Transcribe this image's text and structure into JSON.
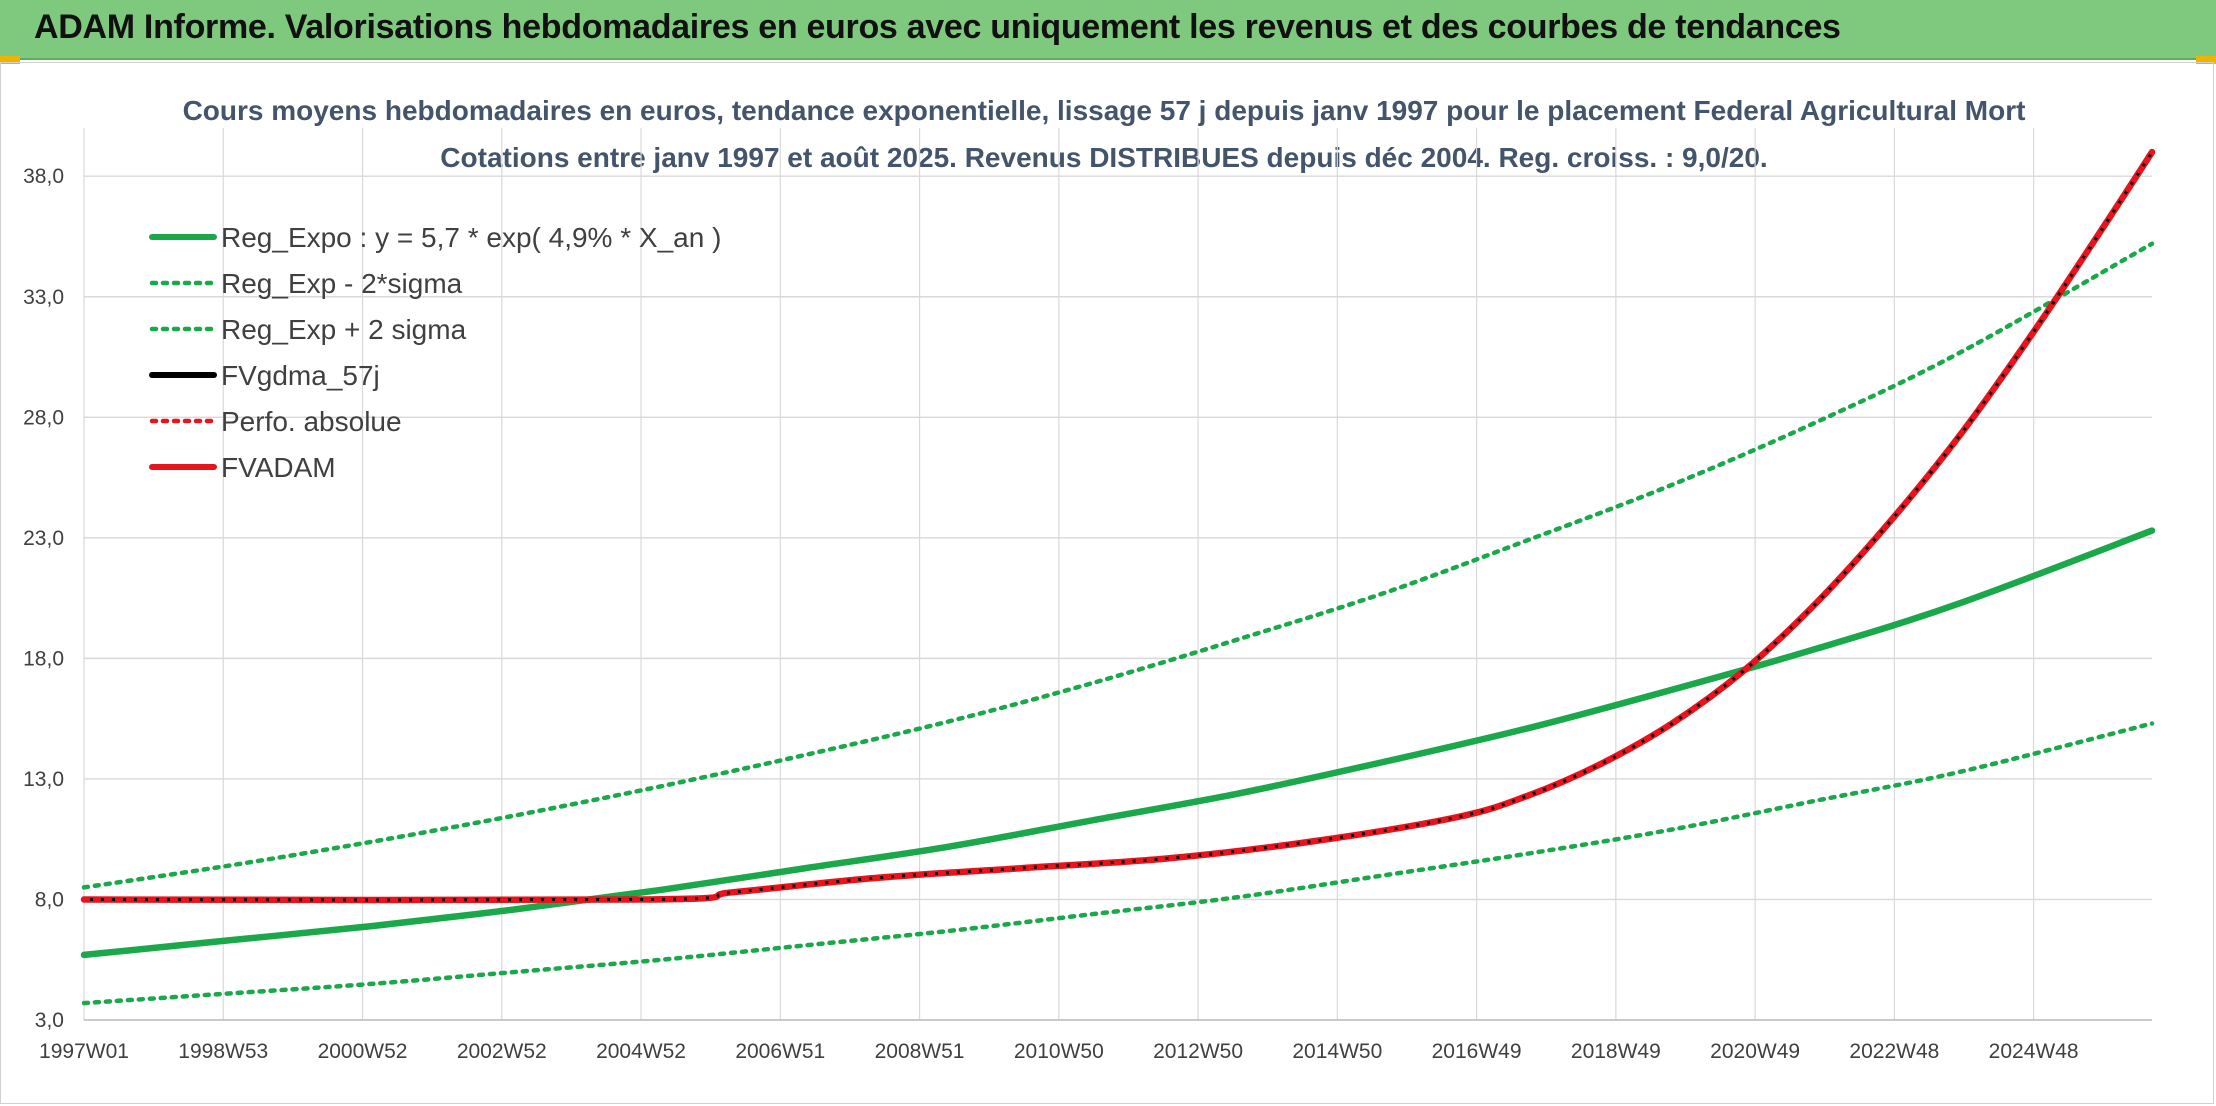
{
  "header": {
    "title": "ADAM Informe. Valorisations hebdomadaires en euros avec uniquement les revenus et des courbes de tendances"
  },
  "colors": {
    "banner": "#7fc97f",
    "green": "#1aa84a",
    "red": "#e8141c",
    "black": "#000000",
    "grid": "#d9d9d9"
  },
  "chart_data": {
    "type": "line",
    "title": "Cours moyens hebdomadaires en euros, tendance exponentielle, lissage 57 j depuis janv 1997 pour le placement Federal Agricultural Mort",
    "subtitle": "Cotations entre janv 1997 et août 2025. Revenus DISTRIBUES depuis déc 2004. Reg. croiss. : 9,0/20.",
    "xlabel": "",
    "ylabel": "",
    "x_ticks": [
      "1997W01",
      "1998W53",
      "2000W52",
      "2002W52",
      "2004W52",
      "2006W51",
      "2008W51",
      "2010W50",
      "2012W50",
      "2014W50",
      "2016W49",
      "2018W49",
      "2020W49",
      "2022W48",
      "2024W48"
    ],
    "x_range": [
      1997.0,
      2025.65
    ],
    "y_ticks": [
      "3,0",
      "8,0",
      "13,0",
      "18,0",
      "23,0",
      "28,0",
      "33,0",
      "38,0"
    ],
    "ylim": [
      3,
      40
    ],
    "grid": true,
    "legend_position": "top-left",
    "series": [
      {
        "name": "Reg_Expo : y = 5,7 * exp( 4,9% *  X_an )",
        "style": "solid",
        "color": "#1aa84a",
        "x": [
          1997.0,
          1999.0,
          2001.0,
          2003.0,
          2005.0,
          2007.0,
          2009.0,
          2011.0,
          2013.0,
          2015.0,
          2017.0,
          2019.0,
          2021.0,
          2023.0,
          2025.65
        ],
        "y": [
          5.7,
          6.3,
          6.9,
          7.6,
          8.4,
          9.3,
          10.2,
          11.3,
          12.4,
          13.7,
          15.1,
          16.7,
          18.4,
          20.3,
          23.3
        ]
      },
      {
        "name": "Reg_Exp - 2*sigma",
        "style": "dotted",
        "color": "#1aa84a",
        "x": [
          1997.0,
          1999.0,
          2001.0,
          2003.0,
          2005.0,
          2007.0,
          2009.0,
          2011.0,
          2013.0,
          2015.0,
          2017.0,
          2019.0,
          2021.0,
          2023.0,
          2025.65
        ],
        "y": [
          3.7,
          4.1,
          4.5,
          5.0,
          5.5,
          6.1,
          6.7,
          7.4,
          8.1,
          9.0,
          9.9,
          10.9,
          12.1,
          13.3,
          15.3
        ]
      },
      {
        "name": "Reg_Exp + 2 sigma",
        "style": "dotted",
        "color": "#1aa84a",
        "x": [
          1997.0,
          1999.0,
          2001.0,
          2003.0,
          2005.0,
          2007.0,
          2009.0,
          2011.0,
          2013.0,
          2015.0,
          2017.0,
          2019.0,
          2021.0,
          2023.0,
          2025.65
        ],
        "y": [
          8.5,
          9.4,
          10.4,
          11.5,
          12.7,
          14.0,
          15.4,
          17.0,
          18.8,
          20.7,
          22.9,
          25.2,
          27.8,
          30.7,
          35.2
        ]
      },
      {
        "name": "FVgdma_57j",
        "style": "solid",
        "color": "#000000",
        "x": [
          1997.0,
          2004.8,
          2006.0,
          2008.0,
          2010.0,
          2012.0,
          2014.0,
          2016.0,
          2017.0,
          2018.0,
          2019.0,
          2020.0,
          2021.0,
          2022.0,
          2023.0,
          2024.0,
          2025.0,
          2025.65
        ],
        "y": [
          8.0,
          8.0,
          8.3,
          8.9,
          9.3,
          9.7,
          10.4,
          11.4,
          12.3,
          13.6,
          15.3,
          17.5,
          20.3,
          23.6,
          27.3,
          31.5,
          36.0,
          39.0
        ]
      },
      {
        "name": "Perfo. absolue",
        "style": "dotted",
        "color": "#e8141c",
        "x": [
          1997.0,
          2004.8,
          2006.0,
          2008.0,
          2010.0,
          2012.0,
          2014.0,
          2016.0,
          2017.0,
          2018.0,
          2019.0,
          2020.0,
          2021.0,
          2022.0,
          2023.0,
          2024.0,
          2025.0,
          2025.65
        ],
        "y": [
          8.0,
          8.0,
          8.3,
          8.9,
          9.3,
          9.7,
          10.4,
          11.4,
          12.3,
          13.6,
          15.3,
          17.5,
          20.3,
          23.6,
          27.3,
          31.5,
          36.0,
          39.0
        ]
      },
      {
        "name": "FVADAM",
        "style": "solid",
        "color": "#e8141c",
        "x": [
          1997.0,
          2004.8,
          2006.0,
          2008.0,
          2010.0,
          2012.0,
          2014.0,
          2016.0,
          2017.0,
          2018.0,
          2019.0,
          2020.0,
          2021.0,
          2022.0,
          2023.0,
          2024.0,
          2025.0,
          2025.65
        ],
        "y": [
          8.0,
          8.0,
          8.3,
          8.9,
          9.3,
          9.7,
          10.4,
          11.4,
          12.3,
          13.6,
          15.3,
          17.5,
          20.3,
          23.6,
          27.3,
          31.5,
          36.0,
          39.0
        ]
      }
    ]
  }
}
